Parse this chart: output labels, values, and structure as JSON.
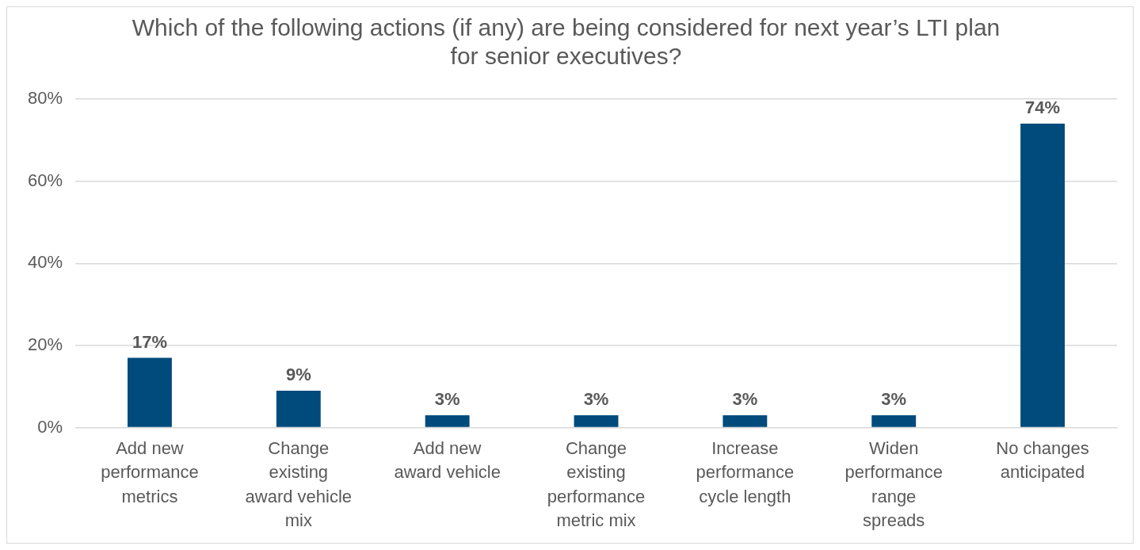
{
  "chart_data": {
    "type": "bar",
    "title": "Which of the following actions (if any) are being considered for next year’s LTI plan for senior executives?",
    "categories": [
      "Add new performance metrics",
      "Change existing award vehicle mix",
      "Add new award vehicle",
      "Change existing performance metric mix",
      "Increase performance cycle length",
      "Widen performance range spreads",
      "No changes anticipated"
    ],
    "values": [
      17,
      9,
      3,
      3,
      3,
      3,
      74
    ],
    "value_labels": [
      "17%",
      "9%",
      "3%",
      "3%",
      "3%",
      "3%",
      "74%"
    ],
    "color": "#004b7c",
    "ylim": [
      0,
      80
    ],
    "yticks": [
      {
        "value": 0,
        "label": "0%"
      },
      {
        "value": 20,
        "label": "20%"
      },
      {
        "value": 40,
        "label": "40%"
      },
      {
        "value": 60,
        "label": "60%"
      },
      {
        "value": 80,
        "label": "80%"
      }
    ],
    "grid": "y",
    "legend": false
  }
}
